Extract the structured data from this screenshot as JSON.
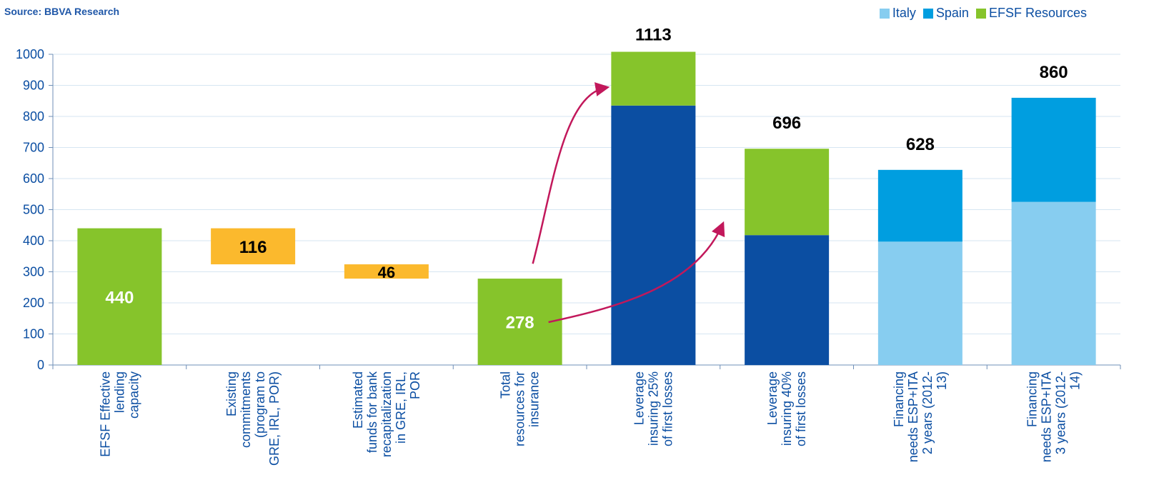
{
  "source": "Source: BBVA Research",
  "chart_data": {
    "type": "bar",
    "ylim": [
      0,
      1000
    ],
    "yticks": [
      0,
      100,
      200,
      300,
      400,
      500,
      600,
      700,
      800,
      900,
      1000
    ],
    "grid": true,
    "legend_position": "top-right",
    "legend": [
      {
        "name": "Italy",
        "color": "#87cdf0"
      },
      {
        "name": "Spain",
        "color": "#009ee0"
      },
      {
        "name": "EFSF Resources",
        "color": "#86c42b"
      }
    ],
    "categories": [
      [
        "EFSF Effective",
        "lending",
        "capacity"
      ],
      [
        "Existing",
        "commitments",
        "(program to",
        "GRE, IRL, POR)"
      ],
      [
        "Estimated",
        "funds for bank",
        "recapitalization",
        "in GRE, IRL,",
        "POR"
      ],
      [
        "Total",
        "resources for",
        "insurance"
      ],
      [
        "Leverage",
        "insuring 25%",
        "of first losses"
      ],
      [
        "Leverage",
        "insuring 40%",
        "of first losses"
      ],
      [
        "Financing",
        "needs ESP+ITA",
        "2 years (2012-",
        "13)"
      ],
      [
        "Financing",
        "needs ESP+ITA",
        "3 years (2012-",
        "14)"
      ]
    ],
    "bars": [
      {
        "label": "440",
        "label_pos": "inside",
        "segments": [
          {
            "from": 0,
            "to": 440,
            "color": "#86c42b"
          }
        ]
      },
      {
        "label": "116",
        "label_pos": "inside",
        "label_color": "#000000",
        "segments": [
          {
            "from": 324,
            "to": 440,
            "color": "#fbb92d"
          }
        ]
      },
      {
        "label": "46",
        "label_pos": "inside",
        "label_color": "#000000",
        "segments": [
          {
            "from": 278,
            "to": 324,
            "color": "#fbb92d"
          }
        ]
      },
      {
        "label": "278",
        "label_pos": "inside",
        "segments": [
          {
            "from": 0,
            "to": 278,
            "color": "#86c42b"
          }
        ]
      },
      {
        "label": "1113",
        "label_pos": "top",
        "segments": [
          {
            "from": 0,
            "to": 835,
            "color": "#0b4ea2"
          },
          {
            "from": 835,
            "to": 1113,
            "color": "#86c42b"
          }
        ]
      },
      {
        "label": "696",
        "label_pos": "top",
        "segments": [
          {
            "from": 0,
            "to": 418,
            "color": "#0b4ea2"
          },
          {
            "from": 418,
            "to": 696,
            "color": "#86c42b"
          }
        ]
      },
      {
        "label": "628",
        "label_pos": "top",
        "segments": [
          {
            "from": 0,
            "to": 397,
            "color": "#87cdf0",
            "series": "Italy"
          },
          {
            "from": 397,
            "to": 628,
            "color": "#009ee0",
            "series": "Spain"
          }
        ]
      },
      {
        "label": "860",
        "label_pos": "top",
        "segments": [
          {
            "from": 0,
            "to": 525,
            "color": "#87cdf0",
            "series": "Italy"
          },
          {
            "from": 525,
            "to": 860,
            "color": "#009ee0",
            "series": "Spain"
          }
        ]
      }
    ],
    "arrow_color": "#c2185b"
  }
}
